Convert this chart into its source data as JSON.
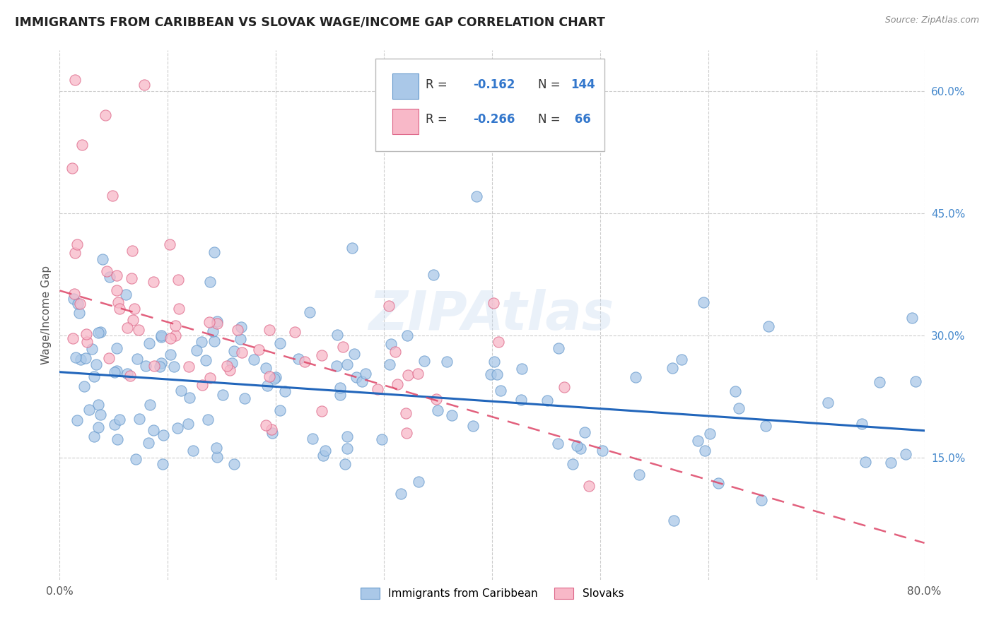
{
  "title": "IMMIGRANTS FROM CARIBBEAN VS SLOVAK WAGE/INCOME GAP CORRELATION CHART",
  "source": "Source: ZipAtlas.com",
  "ylabel": "Wage/Income Gap",
  "xlim": [
    0.0,
    0.8
  ],
  "ylim": [
    0.0,
    0.65
  ],
  "xtick_positions": [
    0.0,
    0.1,
    0.2,
    0.3,
    0.4,
    0.5,
    0.6,
    0.7,
    0.8
  ],
  "xticklabels": [
    "0.0%",
    "",
    "",
    "",
    "",
    "",
    "",
    "",
    "80.0%"
  ],
  "yticks_right": [
    0.15,
    0.3,
    0.45,
    0.6
  ],
  "ytick_labels_right": [
    "15.0%",
    "30.0%",
    "45.0%",
    "60.0%"
  ],
  "caribbean_color": "#aac8e8",
  "caribbean_edge": "#6699cc",
  "slovak_color": "#f8b8c8",
  "slovak_edge": "#dd6688",
  "trend_caribbean_color": "#2266bb",
  "trend_slovak_color": "#dd4466",
  "R_caribbean": -0.162,
  "N_caribbean": 144,
  "R_slovak": -0.266,
  "N_slovak": 66,
  "legend_label_caribbean": "Immigrants from Caribbean",
  "legend_label_slovak": "Slovaks",
  "watermark": "ZIPAtlas",
  "trend_carib_y0": 0.255,
  "trend_carib_y1": 0.183,
  "trend_slovak_y0": 0.355,
  "trend_slovak_y1": 0.045
}
